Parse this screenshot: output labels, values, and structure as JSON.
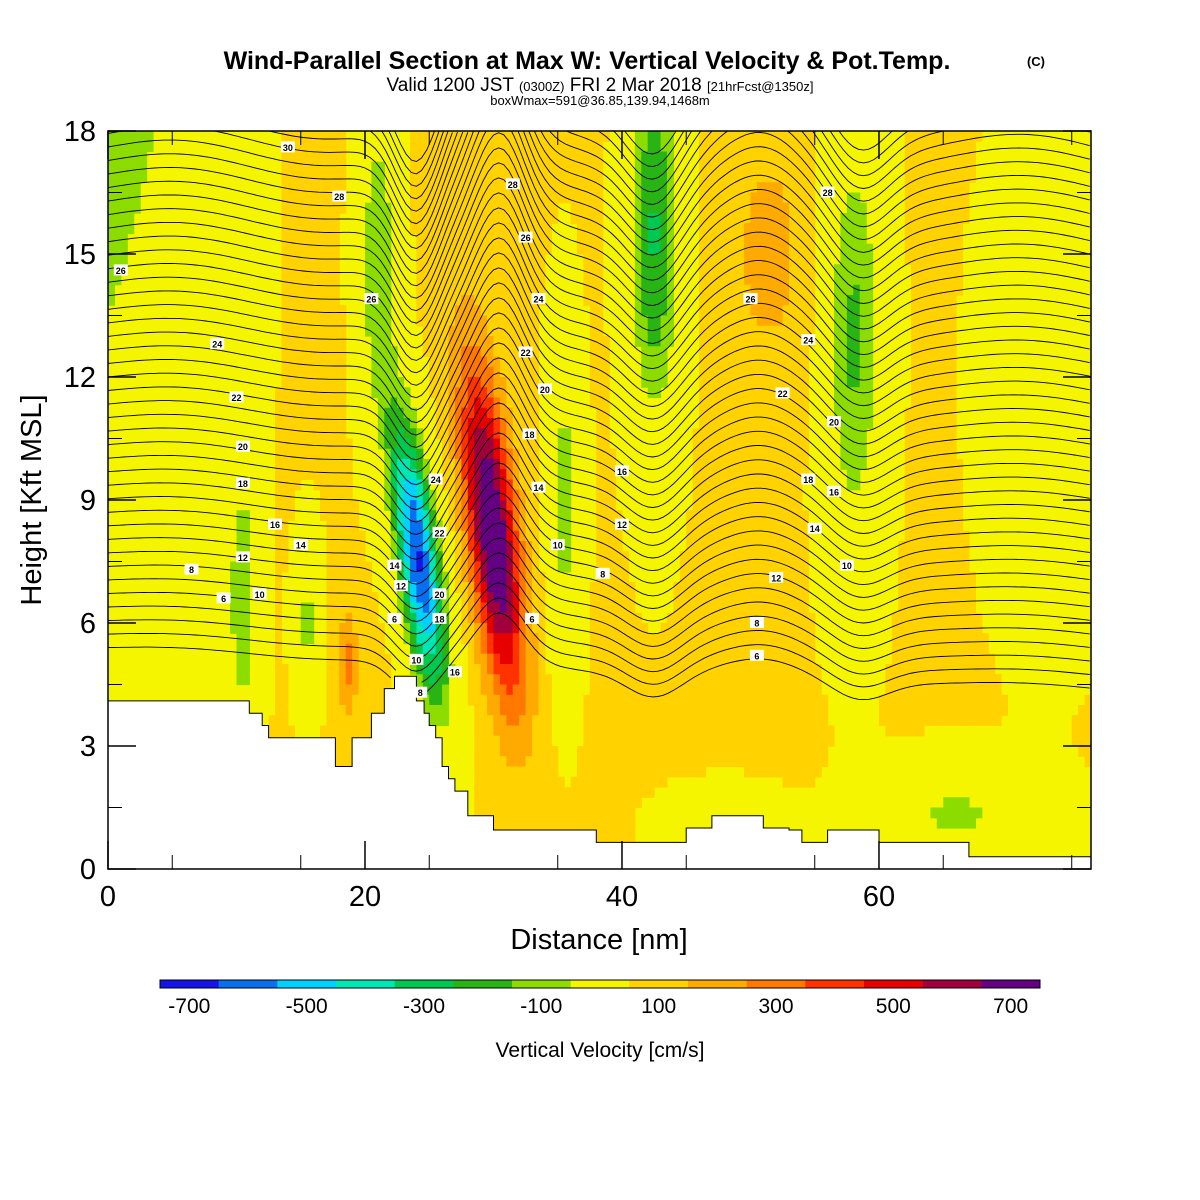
{
  "header": {
    "title": "Wind-Parallel Section at Max W: Vertical Velocity & Pot.Temp.",
    "copyright": "(C)",
    "valid_prefix": "Valid 1200 JST",
    "valid_utc": "(0300Z)",
    "valid_date": "FRI 2 Mar 2018",
    "forecast": "[21hrFcst@1350z]",
    "boxwmax": "boxWmax=591@36.85,139.94,1468m"
  },
  "chart_data": {
    "type": "heatmap",
    "xlabel": "Distance [nm]",
    "ylabel": "Height [Kft MSL]",
    "xlim": [
      0,
      76.5
    ],
    "ylim": [
      0,
      18
    ],
    "x_ticks": [
      0,
      20,
      40,
      60
    ],
    "y_ticks": [
      0,
      3,
      6,
      9,
      12,
      15,
      18
    ],
    "colorbar": {
      "label": "Vertical Velocity [cm/s]",
      "tick_labels": [
        "-700",
        "-500",
        "-300",
        "-100",
        "100",
        "300",
        "500",
        "700"
      ],
      "levels": [
        -800,
        -700,
        -600,
        -500,
        -400,
        -300,
        -200,
        -100,
        100,
        200,
        300,
        400,
        500,
        600,
        700,
        800
      ],
      "colors": [
        "#1414e6",
        "#0a6ef0",
        "#00d2ff",
        "#00e6b4",
        "#00c850",
        "#28b414",
        "#8cdc00",
        "#f5f500",
        "#ffd200",
        "#ffaa00",
        "#ff7800",
        "#ff3200",
        "#e60000",
        "#a0003c",
        "#640082"
      ]
    },
    "vertical_velocity_features": [
      {
        "kind": "downdraft",
        "center_x": 24,
        "center_y": 8,
        "min_cm_s": -700
      },
      {
        "kind": "updraft",
        "center_x": 30,
        "center_y": 8.5,
        "max_cm_s": 591
      },
      {
        "kind": "downdraft",
        "center_x": 42.5,
        "center_y": 15,
        "min_cm_s": -300
      },
      {
        "kind": "updraft",
        "center_x": 52,
        "center_y": 15,
        "max_cm_s": 200
      },
      {
        "kind": "downdraft",
        "center_x": 58,
        "center_y": 13,
        "min_cm_s": -200
      },
      {
        "kind": "downdraft",
        "center_x": 10.5,
        "center_y": 6,
        "min_cm_s": -200
      }
    ],
    "terrain_kft": {
      "x": [
        0,
        10.5,
        11,
        12,
        12.5,
        14.5,
        16,
        17,
        17.7,
        18.5,
        19,
        20.5,
        21.5,
        22.3,
        23,
        24,
        24.6,
        25,
        25.5,
        26,
        26.5,
        27,
        28,
        30,
        31,
        32,
        37,
        38,
        40,
        43,
        45,
        47,
        48,
        50,
        51,
        52,
        53,
        54,
        55,
        56,
        57,
        58,
        59,
        60,
        61,
        62,
        64,
        66,
        67,
        68,
        70,
        72,
        74,
        76.5
      ],
      "y": [
        4.1,
        4.1,
        3.8,
        3.5,
        3.2,
        3.2,
        3.2,
        3.2,
        2.5,
        2.5,
        3.2,
        3.8,
        4.4,
        4.7,
        4.7,
        4.1,
        3.8,
        3.5,
        3.2,
        2.5,
        2.2,
        1.9,
        1.3,
        0.95,
        0.95,
        0.95,
        0.95,
        0.65,
        0.65,
        0.65,
        1.0,
        1.3,
        1.3,
        1.3,
        1.0,
        1.0,
        0.95,
        0.65,
        0.65,
        0.95,
        0.95,
        0.95,
        0.95,
        0.65,
        0.65,
        0.65,
        0.65,
        0.65,
        0.3,
        0.3,
        0.3,
        0.3,
        0.3,
        0.3
      ]
    },
    "theta_contours": {
      "levels_labeled": [
        6,
        8,
        10,
        12,
        14,
        16,
        18,
        20,
        22,
        24,
        26,
        28,
        30
      ],
      "labels": [
        {
          "text": "30",
          "x": 14,
          "y": 17.6
        },
        {
          "text": "28",
          "x": 18,
          "y": 16.4
        },
        {
          "text": "26",
          "x": 1,
          "y": 14.6
        },
        {
          "text": "24",
          "x": 8.5,
          "y": 12.8
        },
        {
          "text": "22",
          "x": 10,
          "y": 11.5
        },
        {
          "text": "20",
          "x": 10.5,
          "y": 10.3
        },
        {
          "text": "18",
          "x": 10.5,
          "y": 9.4
        },
        {
          "text": "16",
          "x": 13,
          "y": 8.4
        },
        {
          "text": "14",
          "x": 15,
          "y": 7.9
        },
        {
          "text": "12",
          "x": 10.5,
          "y": 7.6
        },
        {
          "text": "10",
          "x": 11.8,
          "y": 6.7
        },
        {
          "text": "8",
          "x": 6.5,
          "y": 7.3
        },
        {
          "text": "6",
          "x": 9,
          "y": 6.6
        },
        {
          "text": "26",
          "x": 20.5,
          "y": 13.9
        },
        {
          "text": "24",
          "x": 25.5,
          "y": 9.5
        },
        {
          "text": "22",
          "x": 25.8,
          "y": 8.2
        },
        {
          "text": "20",
          "x": 25.8,
          "y": 6.7
        },
        {
          "text": "18",
          "x": 25.8,
          "y": 6.1
        },
        {
          "text": "16",
          "x": 27,
          "y": 4.8
        },
        {
          "text": "14",
          "x": 22.3,
          "y": 7.4
        },
        {
          "text": "12",
          "x": 22.8,
          "y": 6.9
        },
        {
          "text": "6",
          "x": 22.3,
          "y": 6.1
        },
        {
          "text": "10",
          "x": 24,
          "y": 5.1
        },
        {
          "text": "8",
          "x": 24.3,
          "y": 4.3
        },
        {
          "text": "28",
          "x": 31.5,
          "y": 16.7
        },
        {
          "text": "26",
          "x": 32.5,
          "y": 15.4
        },
        {
          "text": "24",
          "x": 33.5,
          "y": 13.9
        },
        {
          "text": "22",
          "x": 32.5,
          "y": 12.6
        },
        {
          "text": "20",
          "x": 34,
          "y": 11.7
        },
        {
          "text": "18",
          "x": 32.8,
          "y": 10.6
        },
        {
          "text": "14",
          "x": 33.5,
          "y": 9.3
        },
        {
          "text": "10",
          "x": 35,
          "y": 7.9
        },
        {
          "text": "6",
          "x": 33,
          "y": 6.1
        },
        {
          "text": "16",
          "x": 40,
          "y": 9.7
        },
        {
          "text": "12",
          "x": 40,
          "y": 8.4
        },
        {
          "text": "8",
          "x": 38.5,
          "y": 7.2
        },
        {
          "text": "26",
          "x": 50,
          "y": 13.9
        },
        {
          "text": "24",
          "x": 54.5,
          "y": 12.9
        },
        {
          "text": "22",
          "x": 52.5,
          "y": 11.6
        },
        {
          "text": "20",
          "x": 56.5,
          "y": 10.9
        },
        {
          "text": "18",
          "x": 54.5,
          "y": 9.5
        },
        {
          "text": "16",
          "x": 56.5,
          "y": 9.2
        },
        {
          "text": "14",
          "x": 55,
          "y": 8.3
        },
        {
          "text": "12",
          "x": 52,
          "y": 7.1
        },
        {
          "text": "10",
          "x": 57.5,
          "y": 7.4
        },
        {
          "text": "8",
          "x": 50.5,
          "y": 6.0
        },
        {
          "text": "6",
          "x": 50.5,
          "y": 5.2
        },
        {
          "text": "28",
          "x": 56,
          "y": 16.5
        }
      ]
    }
  }
}
